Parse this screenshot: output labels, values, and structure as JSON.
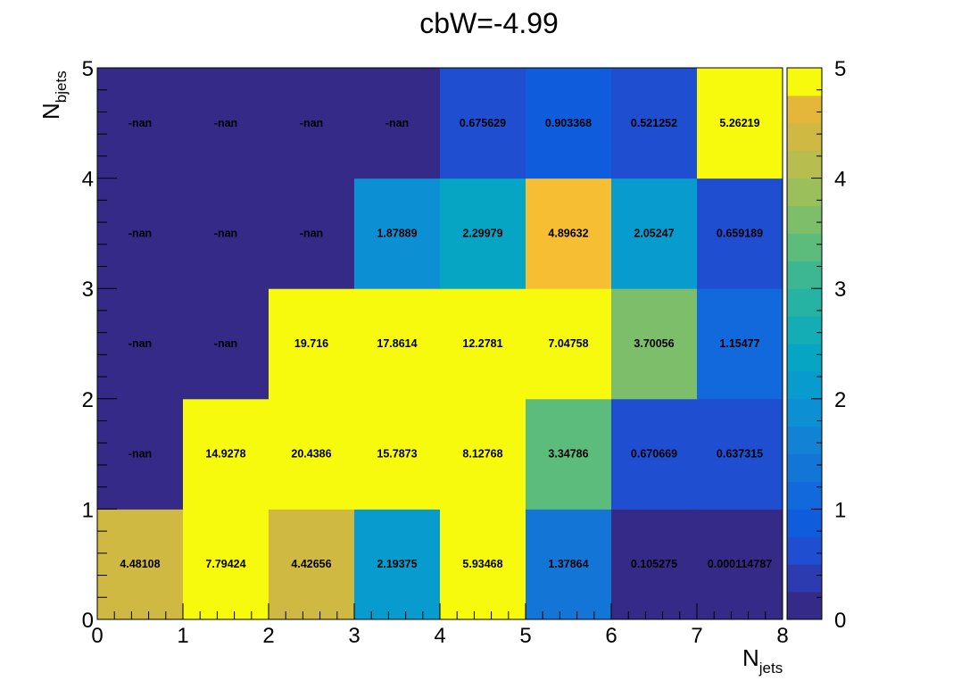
{
  "chart_data": {
    "type": "heatmap",
    "title": "cbW=-4.99",
    "xlabel": {
      "main": "N",
      "sub": "jets"
    },
    "ylabel": {
      "main": "N",
      "sub": "bjets"
    },
    "xlim": [
      0,
      8
    ],
    "ylim": [
      0,
      5
    ],
    "x_ticks": [
      "0",
      "1",
      "2",
      "3",
      "4",
      "5",
      "6",
      "7",
      "8"
    ],
    "y_ticks": [
      "0",
      "1",
      "2",
      "3",
      "4",
      "5"
    ],
    "zlim": [
      0,
      5
    ],
    "z_ticks": [
      "0",
      "1",
      "2",
      "3",
      "4",
      "5"
    ],
    "colormap": "parula",
    "nan_color": "#352a87",
    "cells": [
      [
        {
          "v": 4.48108,
          "t": "4.48108"
        },
        {
          "v": 7.79424,
          "t": "7.79424"
        },
        {
          "v": 4.42656,
          "t": "4.42656"
        },
        {
          "v": 2.19375,
          "t": "2.19375"
        },
        {
          "v": 5.93468,
          "t": "5.93468"
        },
        {
          "v": 1.37864,
          "t": "1.37864"
        },
        {
          "v": 0.105275,
          "t": "0.105275"
        },
        {
          "v": 0.000114787,
          "t": "0.000114787"
        }
      ],
      [
        {
          "v": null,
          "t": "-nan"
        },
        {
          "v": 14.9278,
          "t": "14.9278"
        },
        {
          "v": 20.4386,
          "t": "20.4386"
        },
        {
          "v": 15.7873,
          "t": "15.7873"
        },
        {
          "v": 8.12768,
          "t": "8.12768"
        },
        {
          "v": 3.34786,
          "t": "3.34786"
        },
        {
          "v": 0.670669,
          "t": "0.670669"
        },
        {
          "v": 0.637315,
          "t": "0.637315"
        }
      ],
      [
        {
          "v": null,
          "t": "-nan"
        },
        {
          "v": null,
          "t": "-nan"
        },
        {
          "v": 19.716,
          "t": "19.716"
        },
        {
          "v": 17.8614,
          "t": "17.8614"
        },
        {
          "v": 12.2781,
          "t": "12.2781"
        },
        {
          "v": 7.04758,
          "t": "7.04758"
        },
        {
          "v": 3.70056,
          "t": "3.70056"
        },
        {
          "v": 1.15477,
          "t": "1.15477"
        }
      ],
      [
        {
          "v": null,
          "t": "-nan"
        },
        {
          "v": null,
          "t": "-nan"
        },
        {
          "v": null,
          "t": "-nan"
        },
        {
          "v": 1.87889,
          "t": "1.87889"
        },
        {
          "v": 2.29979,
          "t": "2.29979"
        },
        {
          "v": 4.89632,
          "t": "4.89632"
        },
        {
          "v": 2.05247,
          "t": "2.05247"
        },
        {
          "v": 0.659189,
          "t": "0.659189"
        }
      ],
      [
        {
          "v": null,
          "t": "-nan"
        },
        {
          "v": null,
          "t": "-nan"
        },
        {
          "v": null,
          "t": "-nan"
        },
        {
          "v": null,
          "t": "-nan"
        },
        {
          "v": 0.675629,
          "t": "0.675629"
        },
        {
          "v": 0.903368,
          "t": "0.903368"
        },
        {
          "v": 0.521252,
          "t": "0.521252"
        },
        {
          "v": 5.26219,
          "t": "5.26219"
        }
      ]
    ]
  }
}
